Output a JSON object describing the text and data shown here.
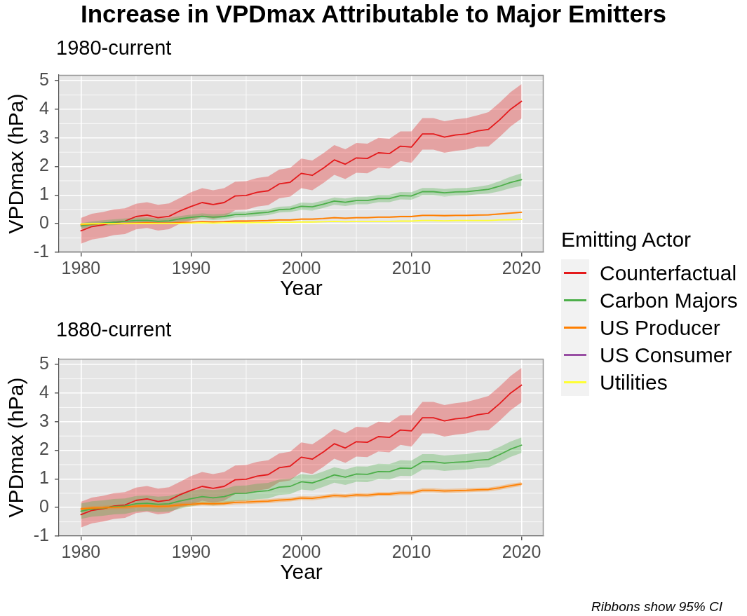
{
  "chart_data": [
    {
      "type": "line",
      "title": "Increase in VPDmax Attributable to Major Emitters",
      "subtitle": "1980-current",
      "xlabel": "Year",
      "ylabel": "VPDmax (hPa)",
      "legend_title": "Emitting Actor",
      "legend": "right",
      "grid": true,
      "x": [
        1980,
        1981,
        1982,
        1983,
        1984,
        1985,
        1986,
        1987,
        1988,
        1989,
        1990,
        1991,
        1992,
        1993,
        1994,
        1995,
        1996,
        1997,
        1998,
        1999,
        2000,
        2001,
        2002,
        2003,
        2004,
        2005,
        2006,
        2007,
        2008,
        2009,
        2010,
        2011,
        2012,
        2013,
        2014,
        2015,
        2016,
        2017,
        2018,
        2019,
        2020
      ],
      "xlim": [
        1978,
        2022
      ],
      "xticks": [
        1980,
        1990,
        2000,
        2010,
        2020
      ],
      "ylim": [
        -1,
        5.2
      ],
      "yticks": [
        -1,
        0,
        1,
        2,
        3,
        4,
        5
      ],
      "series": [
        {
          "name": "Counterfactual",
          "color": "#e41a1c",
          "values": [
            -0.25,
            -0.1,
            -0.04,
            0.05,
            0.09,
            0.25,
            0.3,
            0.21,
            0.26,
            0.45,
            0.6,
            0.74,
            0.67,
            0.74,
            0.97,
            0.99,
            1.1,
            1.15,
            1.39,
            1.45,
            1.76,
            1.69,
            1.94,
            2.23,
            2.08,
            2.3,
            2.28,
            2.48,
            2.45,
            2.71,
            2.68,
            3.14,
            3.14,
            3.03,
            3.1,
            3.14,
            3.24,
            3.3,
            3.63,
            4.0,
            4.28
          ],
          "lower": [
            -0.7,
            -0.55,
            -0.49,
            -0.4,
            -0.36,
            -0.2,
            -0.15,
            -0.24,
            -0.19,
            0.0,
            0.1,
            0.24,
            0.17,
            0.24,
            0.47,
            0.49,
            0.6,
            0.65,
            0.89,
            0.95,
            1.24,
            1.17,
            1.42,
            1.71,
            1.56,
            1.78,
            1.76,
            1.96,
            1.93,
            2.19,
            2.13,
            2.59,
            2.59,
            2.48,
            2.55,
            2.59,
            2.69,
            2.7,
            3.03,
            3.4,
            3.68
          ],
          "upper": [
            0.2,
            0.35,
            0.41,
            0.5,
            0.54,
            0.7,
            0.75,
            0.66,
            0.71,
            0.9,
            1.1,
            1.24,
            1.17,
            1.24,
            1.47,
            1.49,
            1.6,
            1.65,
            1.89,
            1.95,
            2.28,
            2.21,
            2.46,
            2.75,
            2.6,
            2.82,
            2.8,
            3.0,
            2.97,
            3.23,
            3.23,
            3.69,
            3.69,
            3.58,
            3.65,
            3.69,
            3.79,
            3.9,
            4.23,
            4.6,
            4.88
          ]
        },
        {
          "name": "Carbon Majors",
          "color": "#4daf4a",
          "values": [
            -0.08,
            -0.02,
            0.02,
            0.05,
            0.08,
            0.11,
            0.12,
            0.08,
            0.1,
            0.17,
            0.22,
            0.26,
            0.23,
            0.25,
            0.32,
            0.33,
            0.37,
            0.4,
            0.49,
            0.51,
            0.61,
            0.59,
            0.68,
            0.79,
            0.75,
            0.81,
            0.81,
            0.88,
            0.88,
            0.98,
            0.97,
            1.12,
            1.12,
            1.08,
            1.11,
            1.12,
            1.16,
            1.2,
            1.31,
            1.44,
            1.54
          ],
          "lower": [
            -0.18,
            -0.12,
            -0.08,
            -0.05,
            -0.02,
            0.01,
            0.02,
            -0.02,
            0.0,
            0.07,
            0.12,
            0.16,
            0.13,
            0.15,
            0.22,
            0.23,
            0.27,
            0.3,
            0.39,
            0.41,
            0.48,
            0.46,
            0.55,
            0.66,
            0.62,
            0.68,
            0.68,
            0.75,
            0.75,
            0.85,
            0.84,
            0.99,
            0.99,
            0.95,
            0.98,
            0.99,
            1.03,
            1.05,
            1.13,
            1.24,
            1.32
          ],
          "upper": [
            0.02,
            0.08,
            0.12,
            0.15,
            0.18,
            0.21,
            0.22,
            0.18,
            0.2,
            0.27,
            0.32,
            0.36,
            0.33,
            0.35,
            0.42,
            0.43,
            0.47,
            0.5,
            0.59,
            0.61,
            0.74,
            0.72,
            0.81,
            0.92,
            0.88,
            0.94,
            0.94,
            1.01,
            1.01,
            1.11,
            1.1,
            1.25,
            1.25,
            1.21,
            1.24,
            1.25,
            1.29,
            1.35,
            1.49,
            1.64,
            1.76
          ]
        },
        {
          "name": "US Producer",
          "color": "#ff7f00",
          "values": [
            -0.03,
            -0.01,
            0.0,
            0.0,
            0.01,
            0.02,
            0.03,
            0.02,
            0.02,
            0.04,
            0.05,
            0.07,
            0.06,
            0.07,
            0.09,
            0.09,
            0.1,
            0.11,
            0.13,
            0.13,
            0.16,
            0.16,
            0.18,
            0.21,
            0.19,
            0.21,
            0.21,
            0.23,
            0.23,
            0.25,
            0.25,
            0.29,
            0.29,
            0.28,
            0.29,
            0.29,
            0.3,
            0.31,
            0.34,
            0.37,
            0.4
          ],
          "lower": [
            -0.06,
            -0.04,
            -0.03,
            -0.03,
            -0.02,
            -0.01,
            0.0,
            -0.01,
            -0.01,
            0.01,
            0.02,
            0.04,
            0.03,
            0.04,
            0.06,
            0.06,
            0.07,
            0.08,
            0.1,
            0.1,
            0.13,
            0.13,
            0.15,
            0.18,
            0.16,
            0.18,
            0.18,
            0.2,
            0.2,
            0.22,
            0.22,
            0.26,
            0.26,
            0.25,
            0.26,
            0.26,
            0.27,
            0.28,
            0.31,
            0.34,
            0.37
          ],
          "upper": [
            0.0,
            0.02,
            0.03,
            0.03,
            0.04,
            0.05,
            0.06,
            0.05,
            0.05,
            0.07,
            0.08,
            0.1,
            0.09,
            0.1,
            0.12,
            0.12,
            0.13,
            0.14,
            0.16,
            0.16,
            0.19,
            0.19,
            0.21,
            0.24,
            0.22,
            0.24,
            0.24,
            0.26,
            0.26,
            0.28,
            0.28,
            0.32,
            0.32,
            0.31,
            0.32,
            0.32,
            0.33,
            0.34,
            0.37,
            0.4,
            0.43
          ]
        },
        {
          "name": "US Consumer",
          "color": "#984ea3",
          "values": [
            null,
            null,
            null,
            null,
            null,
            null,
            null,
            null,
            null,
            null,
            null,
            null,
            null,
            null,
            null,
            null,
            null,
            null,
            null,
            null,
            null,
            null,
            null,
            null,
            null,
            null,
            null,
            null,
            null,
            null,
            null,
            null,
            null,
            null,
            null,
            null,
            null,
            null,
            null,
            null,
            null
          ]
        },
        {
          "name": "Utilities",
          "color": "#ffff33",
          "values": [
            -0.01,
            0.0,
            0.0,
            0.0,
            0.0,
            0.01,
            0.01,
            0.01,
            0.01,
            0.01,
            0.02,
            0.03,
            0.02,
            0.03,
            0.03,
            0.03,
            0.04,
            0.04,
            0.05,
            0.05,
            0.06,
            0.06,
            0.07,
            0.08,
            0.07,
            0.08,
            0.08,
            0.08,
            0.08,
            0.09,
            0.09,
            0.11,
            0.11,
            0.1,
            0.11,
            0.11,
            0.11,
            0.11,
            0.13,
            0.14,
            0.15
          ]
        }
      ]
    },
    {
      "type": "line",
      "subtitle": "1880-current",
      "xlabel": "Year",
      "ylabel": "VPDmax (hPa)",
      "grid": true,
      "annotations": [
        "Ribbons show 95% CI"
      ],
      "x": [
        1980,
        1981,
        1982,
        1983,
        1984,
        1985,
        1986,
        1987,
        1988,
        1989,
        1990,
        1991,
        1992,
        1993,
        1994,
        1995,
        1996,
        1997,
        1998,
        1999,
        2000,
        2001,
        2002,
        2003,
        2004,
        2005,
        2006,
        2007,
        2008,
        2009,
        2010,
        2011,
        2012,
        2013,
        2014,
        2015,
        2016,
        2017,
        2018,
        2019,
        2020
      ],
      "xlim": [
        1978,
        2022
      ],
      "xticks": [
        1980,
        1990,
        2000,
        2010,
        2020
      ],
      "ylim": [
        -1,
        5.2
      ],
      "yticks": [
        -1,
        0,
        1,
        2,
        3,
        4,
        5
      ],
      "series": [
        {
          "color": "#e41a1c",
          "values": [
            -0.25,
            -0.1,
            -0.04,
            0.05,
            0.09,
            0.25,
            0.3,
            0.21,
            0.26,
            0.45,
            0.6,
            0.74,
            0.67,
            0.74,
            0.97,
            0.99,
            1.1,
            1.15,
            1.39,
            1.45,
            1.76,
            1.69,
            1.94,
            2.23,
            2.08,
            2.3,
            2.28,
            2.48,
            2.45,
            2.71,
            2.68,
            3.14,
            3.14,
            3.03,
            3.1,
            3.14,
            3.24,
            3.3,
            3.63,
            4.0,
            4.28
          ],
          "lower": [
            -0.7,
            -0.55,
            -0.49,
            -0.4,
            -0.36,
            -0.2,
            -0.15,
            -0.24,
            -0.19,
            0.0,
            0.1,
            0.24,
            0.17,
            0.24,
            0.47,
            0.49,
            0.6,
            0.65,
            0.89,
            0.95,
            1.24,
            1.17,
            1.42,
            1.71,
            1.56,
            1.78,
            1.76,
            1.96,
            1.93,
            2.19,
            2.13,
            2.59,
            2.59,
            2.48,
            2.55,
            2.59,
            2.69,
            2.7,
            3.03,
            3.4,
            3.68
          ],
          "upper": [
            0.2,
            0.35,
            0.41,
            0.5,
            0.54,
            0.7,
            0.75,
            0.66,
            0.71,
            0.9,
            1.1,
            1.24,
            1.17,
            1.24,
            1.47,
            1.49,
            1.6,
            1.65,
            1.89,
            1.95,
            2.28,
            2.21,
            2.46,
            2.75,
            2.6,
            2.82,
            2.8,
            3.0,
            2.97,
            3.23,
            3.23,
            3.69,
            3.69,
            3.58,
            3.65,
            3.69,
            3.79,
            3.9,
            4.23,
            4.6,
            4.88
          ]
        },
        {
          "color": "#4daf4a",
          "values": [
            -0.13,
            -0.05,
            -0.02,
            0.03,
            0.05,
            0.13,
            0.15,
            0.11,
            0.13,
            0.23,
            0.31,
            0.38,
            0.34,
            0.38,
            0.49,
            0.5,
            0.56,
            0.59,
            0.71,
            0.74,
            0.9,
            0.86,
            0.99,
            1.14,
            1.06,
            1.17,
            1.16,
            1.26,
            1.25,
            1.38,
            1.37,
            1.6,
            1.6,
            1.55,
            1.58,
            1.6,
            1.65,
            1.68,
            1.85,
            2.04,
            2.18
          ],
          "lower": [
            -0.4,
            -0.32,
            -0.29,
            -0.24,
            -0.22,
            -0.14,
            -0.12,
            -0.16,
            -0.14,
            -0.04,
            0.04,
            0.11,
            0.07,
            0.11,
            0.22,
            0.23,
            0.29,
            0.32,
            0.44,
            0.47,
            0.63,
            0.59,
            0.72,
            0.87,
            0.79,
            0.9,
            0.89,
            0.99,
            0.98,
            1.11,
            1.1,
            1.33,
            1.33,
            1.28,
            1.31,
            1.33,
            1.38,
            1.41,
            1.58,
            1.77,
            1.91
          ],
          "upper": [
            0.14,
            0.22,
            0.25,
            0.3,
            0.32,
            0.4,
            0.42,
            0.38,
            0.4,
            0.5,
            0.58,
            0.65,
            0.61,
            0.65,
            0.76,
            0.77,
            0.83,
            0.86,
            0.98,
            1.01,
            1.17,
            1.13,
            1.26,
            1.41,
            1.33,
            1.44,
            1.43,
            1.53,
            1.52,
            1.65,
            1.64,
            1.87,
            1.87,
            1.82,
            1.85,
            1.87,
            1.92,
            1.95,
            2.12,
            2.31,
            2.45
          ]
        },
        {
          "color": "#ff7f00",
          "values": [
            -0.05,
            -0.02,
            -0.01,
            0.01,
            0.02,
            0.05,
            0.06,
            0.04,
            0.05,
            0.09,
            0.11,
            0.14,
            0.13,
            0.14,
            0.18,
            0.19,
            0.21,
            0.22,
            0.26,
            0.28,
            0.33,
            0.32,
            0.37,
            0.42,
            0.4,
            0.44,
            0.43,
            0.47,
            0.47,
            0.51,
            0.51,
            0.6,
            0.6,
            0.58,
            0.59,
            0.6,
            0.62,
            0.63,
            0.69,
            0.76,
            0.82
          ],
          "lower": [
            -0.12,
            -0.09,
            -0.08,
            -0.06,
            -0.05,
            -0.02,
            -0.01,
            -0.03,
            -0.02,
            0.02,
            0.04,
            0.07,
            0.06,
            0.07,
            0.11,
            0.12,
            0.14,
            0.15,
            0.19,
            0.21,
            0.26,
            0.25,
            0.3,
            0.35,
            0.33,
            0.37,
            0.36,
            0.4,
            0.4,
            0.44,
            0.44,
            0.53,
            0.53,
            0.51,
            0.52,
            0.53,
            0.55,
            0.56,
            0.62,
            0.69,
            0.75
          ],
          "upper": [
            0.02,
            0.05,
            0.06,
            0.08,
            0.09,
            0.12,
            0.13,
            0.11,
            0.12,
            0.16,
            0.18,
            0.21,
            0.2,
            0.21,
            0.25,
            0.26,
            0.28,
            0.29,
            0.33,
            0.35,
            0.4,
            0.39,
            0.44,
            0.49,
            0.47,
            0.51,
            0.5,
            0.54,
            0.54,
            0.58,
            0.58,
            0.67,
            0.67,
            0.65,
            0.66,
            0.67,
            0.69,
            0.7,
            0.76,
            0.83,
            0.89
          ]
        }
      ]
    }
  ]
}
